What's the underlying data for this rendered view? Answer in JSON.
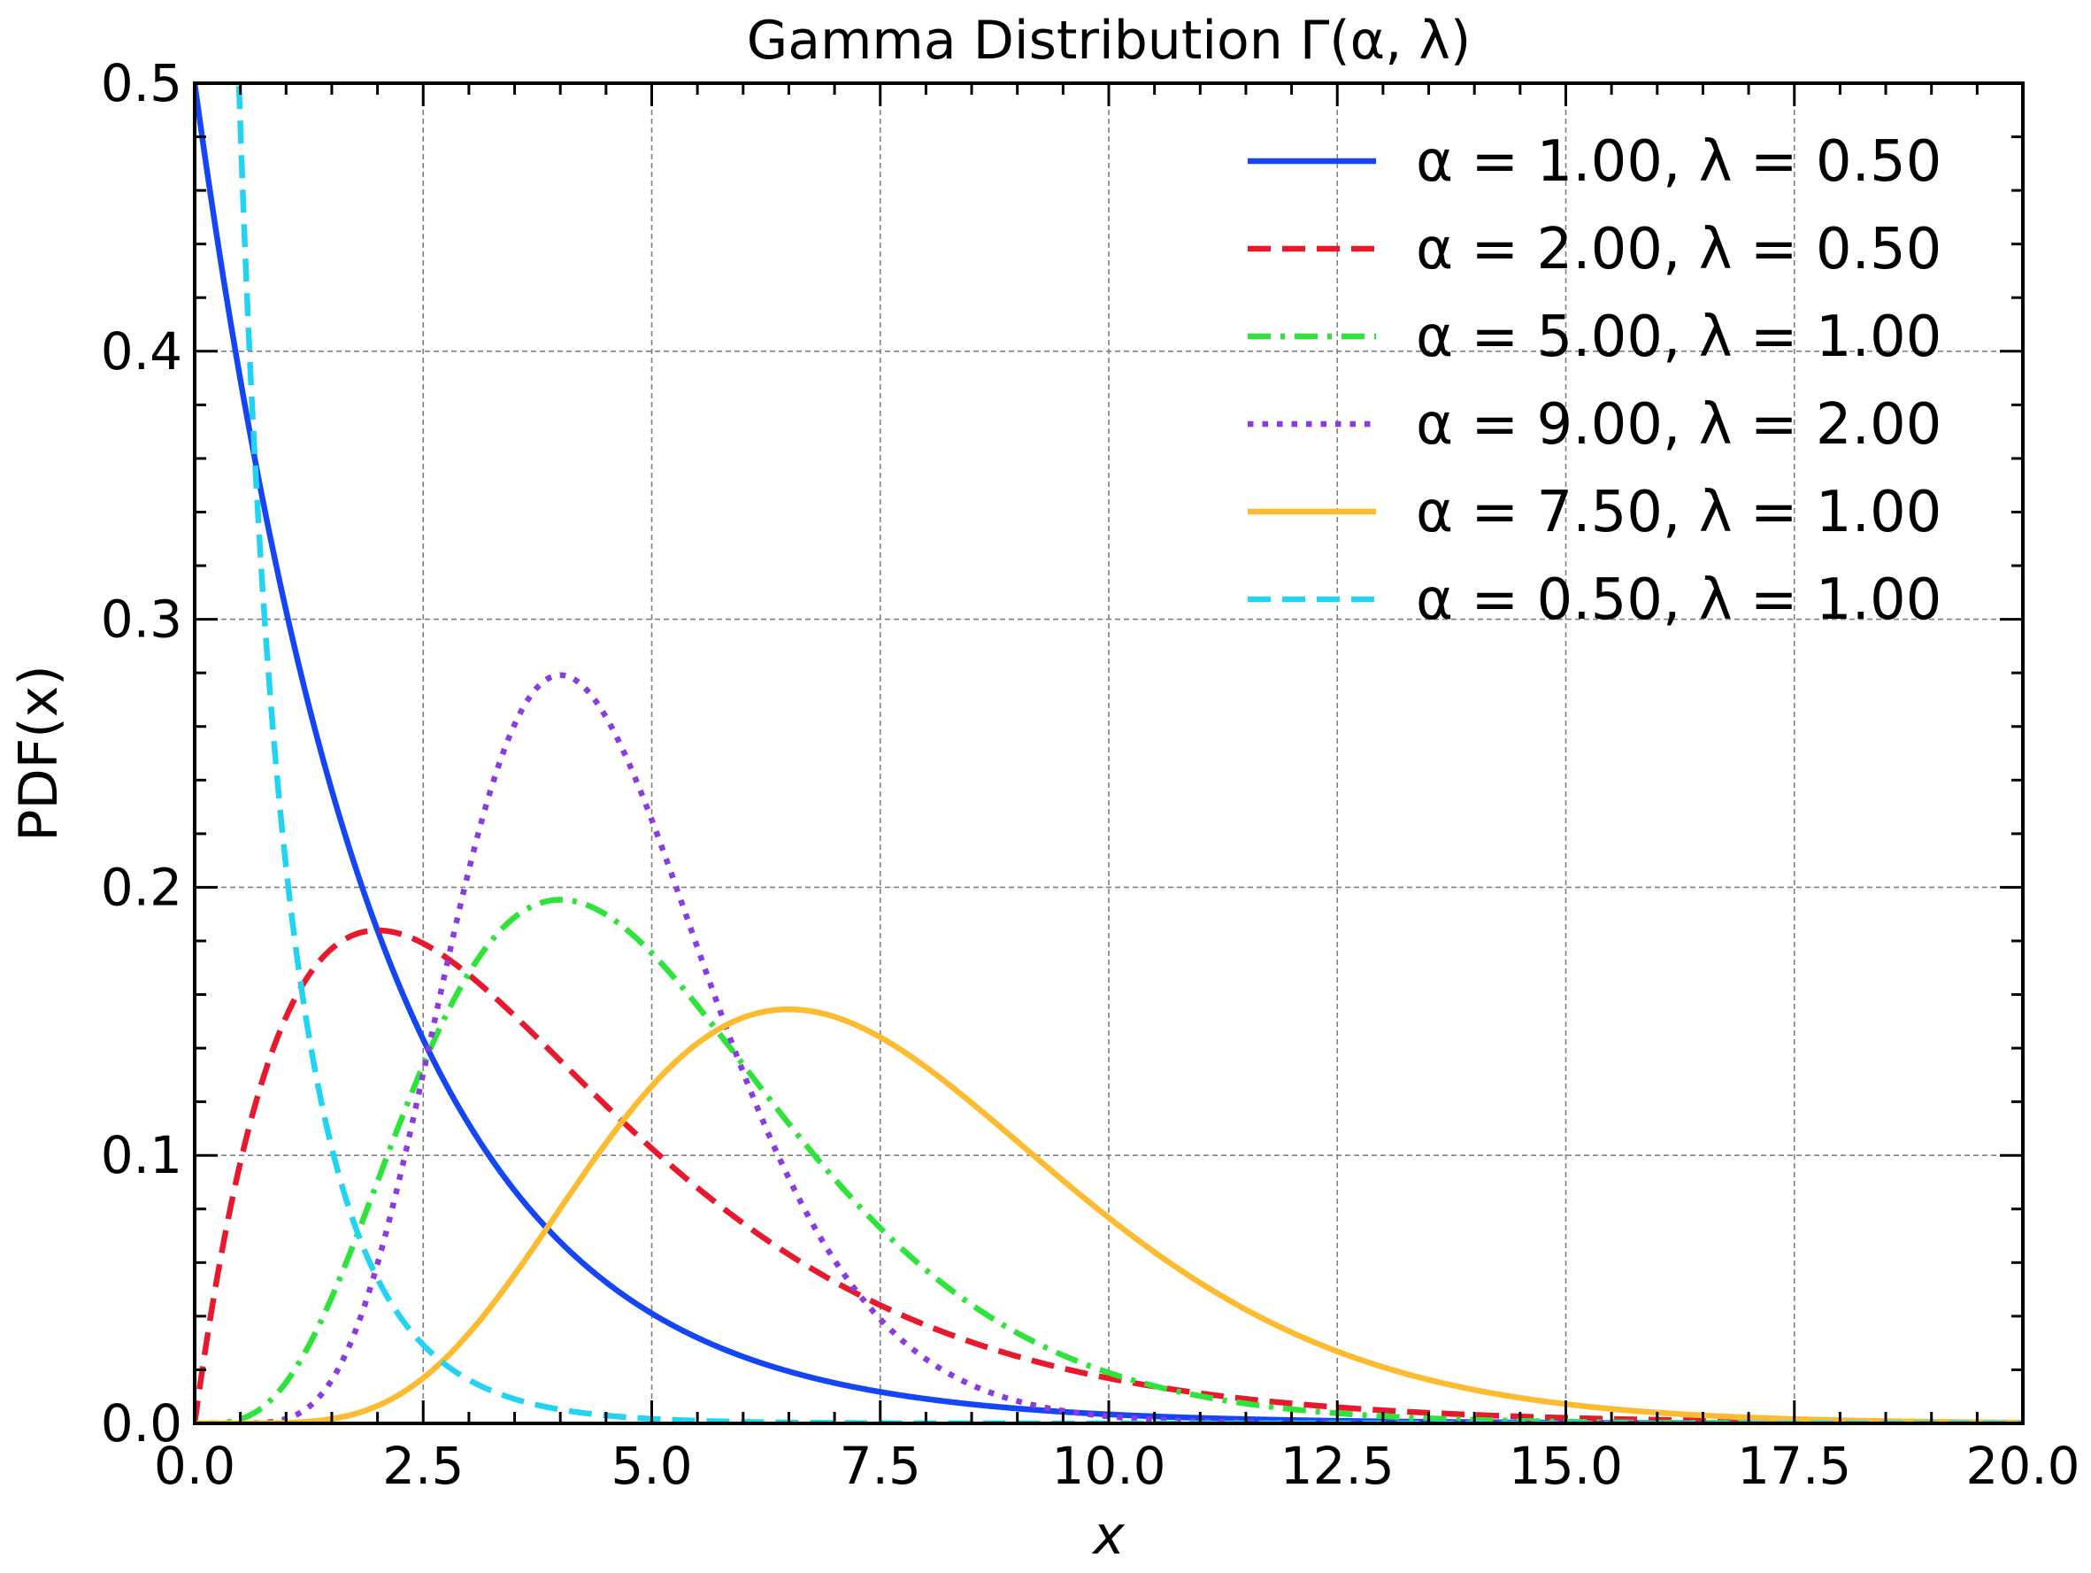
{
  "chart_data": {
    "type": "line",
    "title": "Gamma Distribution Γ(α, λ)",
    "xlabel": "x",
    "ylabel": "PDF(x)",
    "xlim": [
      0,
      20
    ],
    "ylim": [
      0,
      0.5
    ],
    "x_ticks": [
      "0.0",
      "2.5",
      "5.0",
      "7.5",
      "10.0",
      "12.5",
      "15.0",
      "17.5",
      "20.0"
    ],
    "y_ticks": [
      "0.0",
      "0.1",
      "0.2",
      "0.3",
      "0.4",
      "0.5"
    ],
    "grid": true,
    "legend_position": "top-right",
    "series": [
      {
        "name": "α = 1.00, λ = 0.50",
        "alpha": 1.0,
        "lambda": 0.5,
        "color": "#1446F5",
        "style": "solid"
      },
      {
        "name": "α = 2.00, λ = 0.50",
        "alpha": 2.0,
        "lambda": 0.5,
        "color": "#E8192C",
        "style": "dashed"
      },
      {
        "name": "α = 5.00, λ = 1.00",
        "alpha": 5.0,
        "lambda": 1.0,
        "color": "#2EE43A",
        "style": "dashdot"
      },
      {
        "name": "α = 9.00, λ = 2.00",
        "alpha": 9.0,
        "lambda": 2.0,
        "color": "#8A3BE2",
        "style": "dotted"
      },
      {
        "name": "α = 7.50, λ = 1.00",
        "alpha": 7.5,
        "lambda": 1.0,
        "color": "#FDBB30",
        "style": "solid"
      },
      {
        "name": "α = 0.50, λ = 1.00",
        "alpha": 0.5,
        "lambda": 1.0,
        "color": "#22D3F2",
        "style": "dashed"
      }
    ]
  }
}
